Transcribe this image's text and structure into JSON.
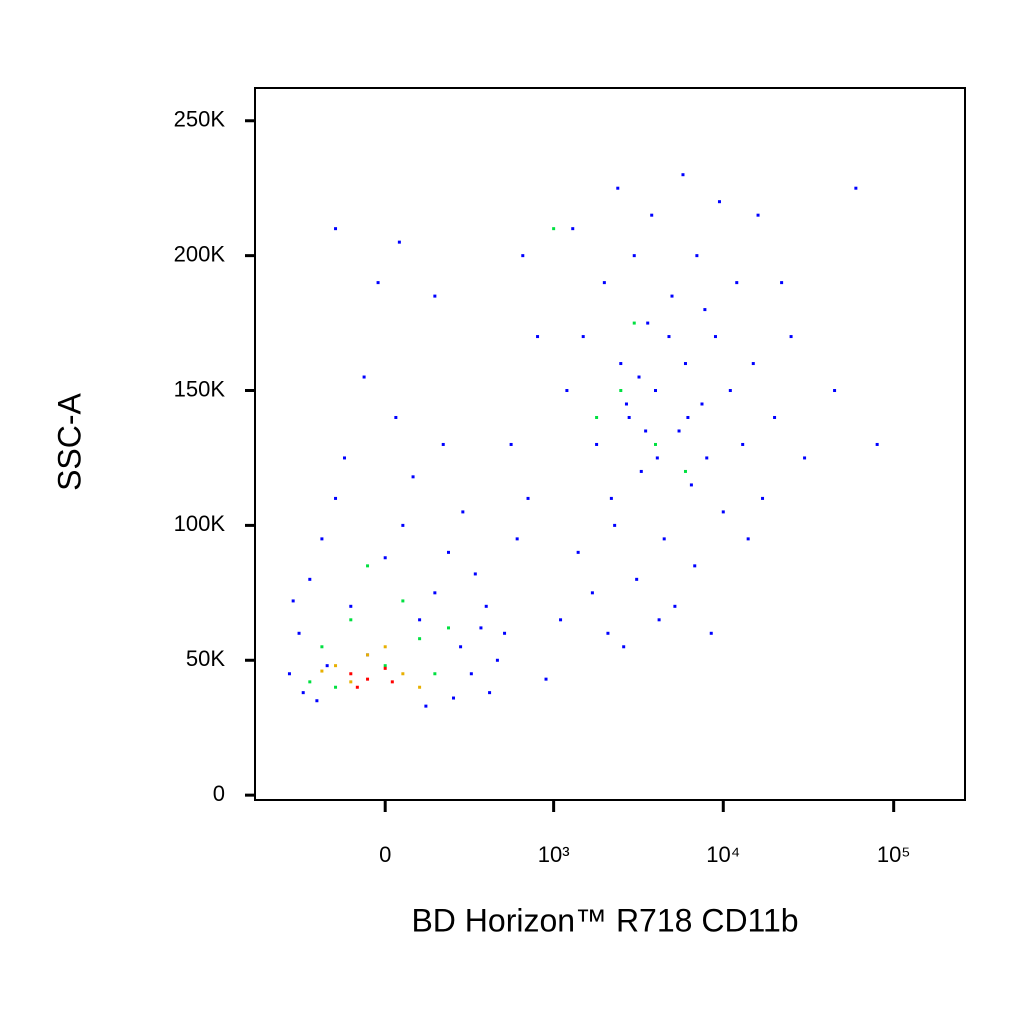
{
  "chart_data": {
    "type": "scatter",
    "xlabel": "BD Horizon™ R718 CD11b",
    "ylabel": "SSC-A",
    "xscale": "biexponential",
    "xlim": [
      -585,
      262144
    ],
    "xticks": [
      {
        "value": 0,
        "label": "0"
      },
      {
        "value": 1000,
        "label": "10³"
      },
      {
        "value": 10000,
        "label": "10⁴"
      },
      {
        "value": 100000,
        "label": "10⁵"
      }
    ],
    "ylim": [
      -1800,
      262144
    ],
    "yticks": [
      0,
      {
        "value": 50000,
        "label": "50K"
      },
      {
        "value": 100000,
        "label": "100K"
      },
      {
        "value": 150000,
        "label": "150K"
      },
      {
        "value": 200000,
        "label": "200K"
      },
      {
        "value": 250000,
        "label": "250K"
      }
    ],
    "series": [
      {
        "color": "#0000ff",
        "x": [
          -350,
          -300,
          -250,
          -200,
          -150,
          -100,
          -50,
          0,
          50,
          100,
          150,
          200,
          250,
          300,
          350,
          400,
          450,
          -280,
          -220,
          120,
          220,
          -120,
          30,
          -60,
          80,
          180,
          260,
          -330,
          -180,
          320,
          380,
          500,
          -20,
          40,
          -150,
          150,
          600,
          700,
          550,
          800,
          650,
          900,
          1200,
          1500,
          1800,
          2000,
          2200,
          2500,
          2800,
          3000,
          3300,
          3600,
          4000,
          4500,
          5000,
          5500,
          6000,
          6500,
          7000,
          7500,
          8000,
          9000,
          10000,
          11000,
          12000,
          13000,
          15000,
          17000,
          20000,
          25000,
          30000,
          1400,
          1700,
          2100,
          2600,
          3100,
          4200,
          5200,
          6800,
          8500,
          1300,
          2400,
          3800,
          5800,
          9500,
          16000,
          45000,
          60000,
          80000,
          1100,
          2300,
          3500,
          4800,
          7800,
          14000,
          22000,
          3200,
          4100,
          2700,
          6200
        ],
        "values": [
          45000,
          60000,
          80000,
          95000,
          110000,
          70000,
          52000,
          88000,
          100000,
          65000,
          75000,
          90000,
          55000,
          45000,
          62000,
          38000,
          50000,
          38000,
          35000,
          33000,
          36000,
          125000,
          140000,
          155000,
          118000,
          130000,
          105000,
          72000,
          48000,
          82000,
          70000,
          60000,
          190000,
          205000,
          210000,
          185000,
          95000,
          110000,
          130000,
          170000,
          200000,
          43000,
          150000,
          170000,
          130000,
          190000,
          110000,
          160000,
          140000,
          200000,
          120000,
          175000,
          150000,
          95000,
          185000,
          135000,
          160000,
          115000,
          200000,
          145000,
          125000,
          170000,
          105000,
          150000,
          190000,
          130000,
          160000,
          110000,
          140000,
          170000,
          125000,
          90000,
          75000,
          60000,
          55000,
          80000,
          65000,
          70000,
          85000,
          60000,
          210000,
          225000,
          215000,
          230000,
          220000,
          215000,
          150000,
          225000,
          130000,
          65000,
          100000,
          135000,
          170000,
          180000,
          95000,
          190000,
          155000,
          125000,
          145000,
          140000
        ]
      },
      {
        "color": "#00e040",
        "x": [
          -200,
          -100,
          0,
          100,
          -250,
          50,
          150,
          -50,
          200,
          -150,
          2500,
          4000,
          3000,
          6000,
          1800,
          1000
        ],
        "values": [
          55000,
          65000,
          48000,
          58000,
          42000,
          72000,
          45000,
          85000,
          62000,
          40000,
          150000,
          130000,
          175000,
          120000,
          140000,
          210000
        ]
      },
      {
        "color": "#e8b000",
        "x": [
          -150,
          -50,
          50,
          -100,
          0,
          100,
          -200
        ],
        "values": [
          48000,
          52000,
          45000,
          42000,
          55000,
          40000,
          46000
        ]
      },
      {
        "color": "#ff0000",
        "x": [
          -100,
          -50,
          0,
          -80,
          20
        ],
        "values": [
          45000,
          43000,
          47000,
          40000,
          42000
        ]
      }
    ]
  }
}
